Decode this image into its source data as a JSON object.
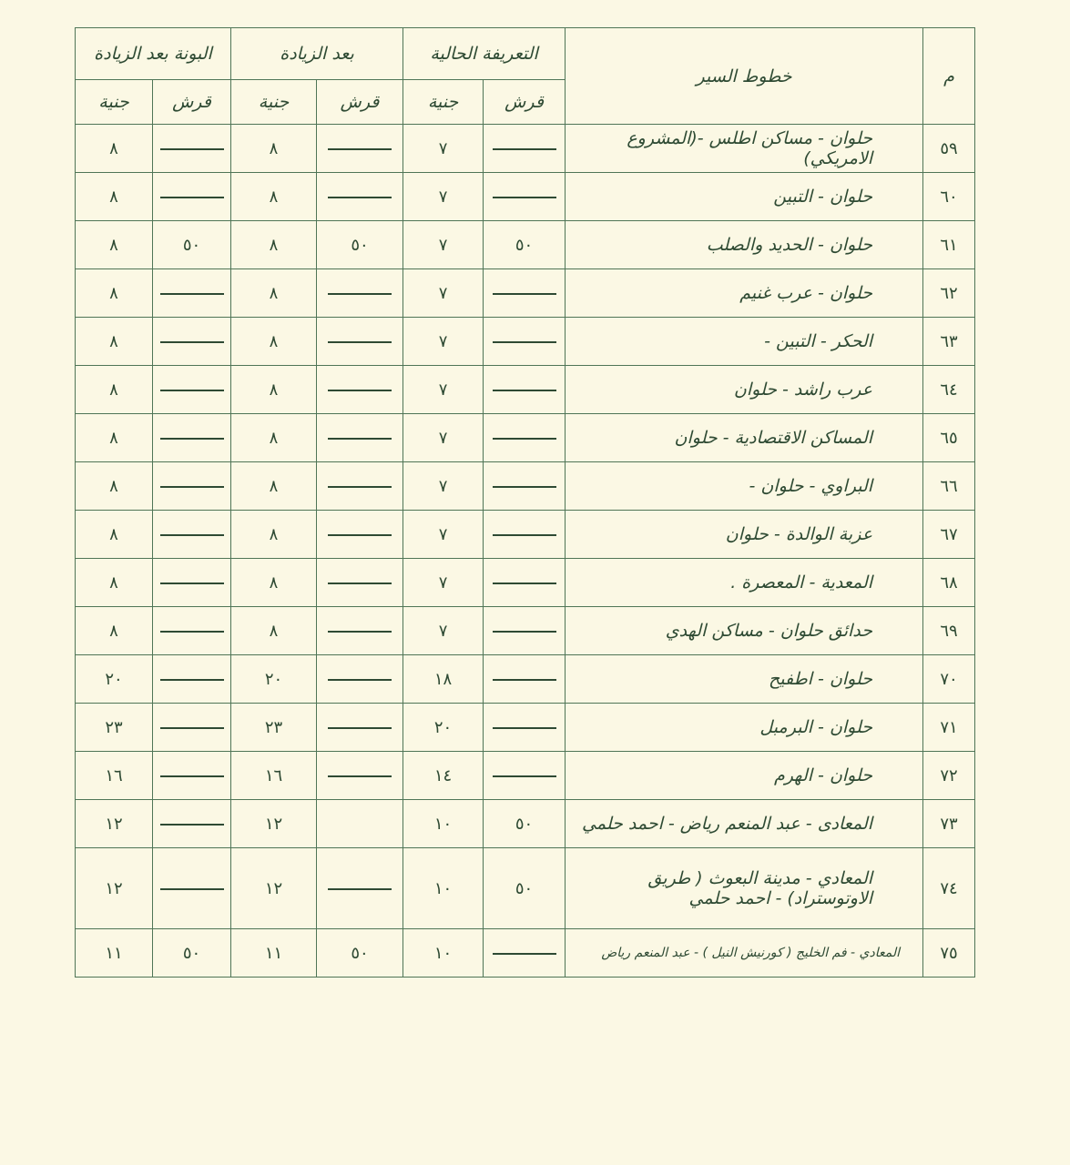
{
  "header": {
    "num": "م",
    "route": "خطوط السير",
    "current": "التعريفة الحالية",
    "after": "بعد الزيادة",
    "bona": "البونة بعد الزيادة",
    "qirsh": "قرش",
    "gineh": "جنية"
  },
  "rows": [
    {
      "num": "٥٩",
      "route": "حلوان - مساكن اطلس -(المشروع الامريكي)",
      "cq": "—",
      "cg": "٧",
      "aq": "—",
      "ag": "٨",
      "bq": "—",
      "bg": "٨"
    },
    {
      "num": "٦٠",
      "route": "حلوان - التبين",
      "cq": "—",
      "cg": "٧",
      "aq": "—",
      "ag": "٨",
      "bq": "—",
      "bg": "٨"
    },
    {
      "num": "٦١",
      "route": "حلوان - الحديد والصلب",
      "cq": "٥٠",
      "cg": "٧",
      "aq": "٥٠",
      "ag": "٨",
      "bq": "٥٠",
      "bg": "٨"
    },
    {
      "num": "٦٢",
      "route": "حلوان - عرب غنيم",
      "cq": "—",
      "cg": "٧",
      "aq": "—",
      "ag": "٨",
      "bq": "—",
      "bg": "٨"
    },
    {
      "num": "٦٣",
      "route": "الحكر - التبين -",
      "cq": "—",
      "cg": "٧",
      "aq": "—",
      "ag": "٨",
      "bq": "—",
      "bg": "٨"
    },
    {
      "num": "٦٤",
      "route": "عرب راشد - حلوان",
      "cq": "—",
      "cg": "٧",
      "aq": "—",
      "ag": "٨",
      "bq": "—",
      "bg": "٨"
    },
    {
      "num": "٦٥",
      "route": "المساكن الاقتصادية - حلوان",
      "cq": "—",
      "cg": "٧",
      "aq": "—",
      "ag": "٨",
      "bq": "—",
      "bg": "٨"
    },
    {
      "num": "٦٦",
      "route": "البراوي - حلوان -",
      "cq": "—",
      "cg": "٧",
      "aq": "—",
      "ag": "٨",
      "bq": "—",
      "bg": "٨"
    },
    {
      "num": "٦٧",
      "route": "عزبة الوالدة - حلوان",
      "cq": "—",
      "cg": "٧",
      "aq": "—",
      "ag": "٨",
      "bq": "—",
      "bg": "٨"
    },
    {
      "num": "٦٨",
      "route": "المعدية - المعصرة .",
      "cq": "—",
      "cg": "٧",
      "aq": "—",
      "ag": "٨",
      "bq": "—",
      "bg": "٨"
    },
    {
      "num": "٦٩",
      "route": "حدائق حلوان - مساكن الهدي",
      "cq": "—",
      "cg": "٧",
      "aq": "—",
      "ag": "٨",
      "bq": "—",
      "bg": "٨"
    },
    {
      "num": "٧٠",
      "route": "حلوان - اطفيح",
      "cq": "—",
      "cg": "١٨",
      "aq": "—",
      "ag": "٢٠",
      "bq": "—",
      "bg": "٢٠"
    },
    {
      "num": "٧١",
      "route": "حلوان - البرمبل",
      "cq": "—",
      "cg": "٢٠",
      "aq": "—",
      "ag": "٢٣",
      "bq": "—",
      "bg": "٢٣"
    },
    {
      "num": "٧٢",
      "route": "حلوان - الهرم",
      "cq": "—",
      "cg": "١٤",
      "aq": "—",
      "ag": "١٦",
      "bq": "—",
      "bg": "١٦"
    },
    {
      "num": "٧٣",
      "route": "المعادى - عبد المنعم رياض - احمد حلمي",
      "cq": "٥٠",
      "cg": "١٠",
      "aq": "",
      "ag": "١٢",
      "bq": "—",
      "bg": "١٢"
    },
    {
      "num": "٧٤",
      "route": "المعادي - مدينة البعوث ( طريق الاوتوستراد) - احمد حلمي",
      "cq": "٥٠",
      "cg": "١٠",
      "aq": "—",
      "ag": "١٢",
      "bq": "—",
      "bg": "١٢"
    },
    {
      "num": "٧٥",
      "route": "المعادي - فم الخليج ( كورنيش النيل ) - عبد المنعم رياض",
      "cq": "—",
      "cg": "١٠",
      "aq": "٥٠",
      "ag": "١١",
      "bq": "٥٠",
      "bg": "١١"
    }
  ]
}
